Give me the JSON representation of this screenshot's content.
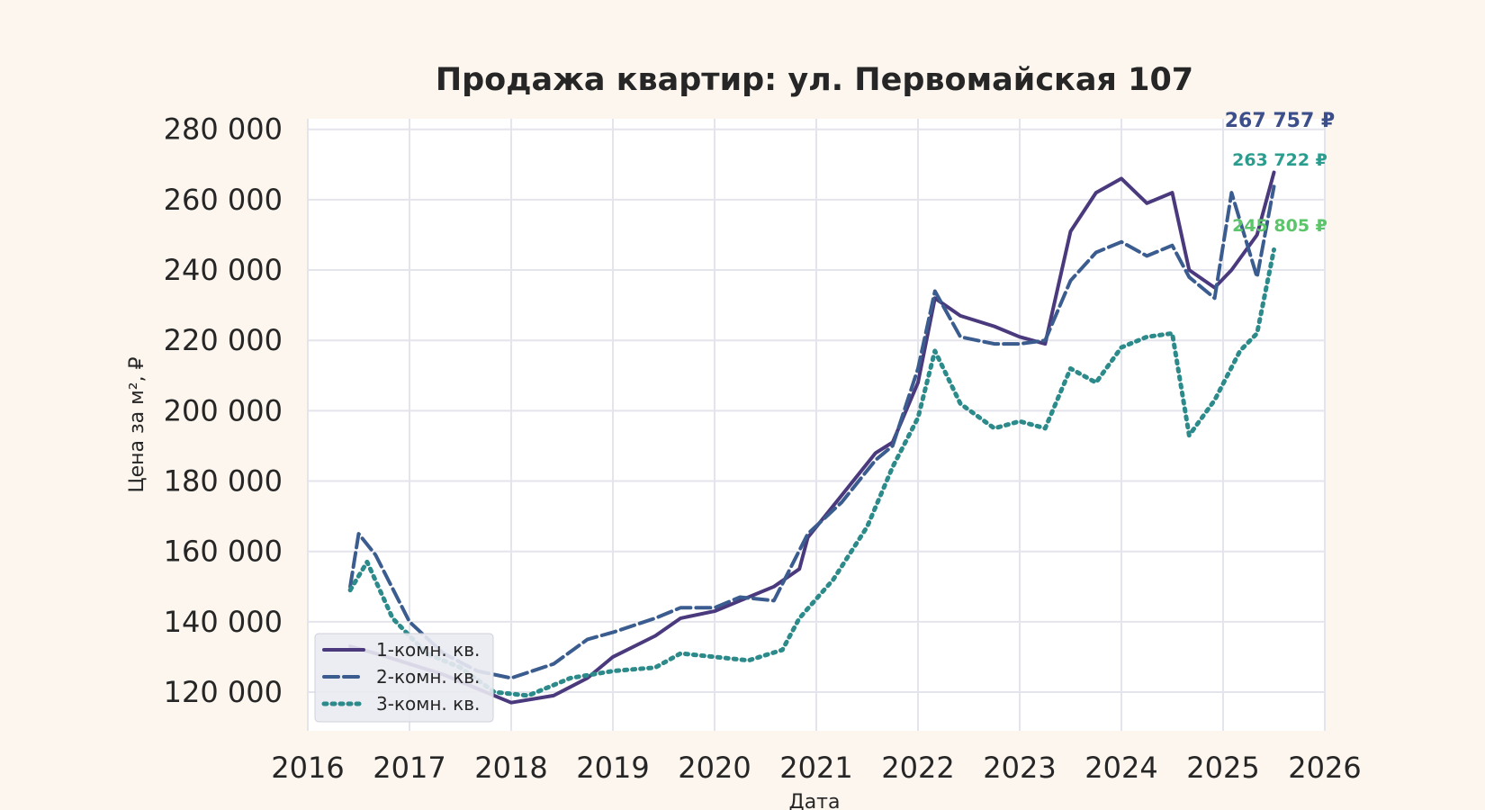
{
  "chart_data": {
    "type": "line",
    "title": "Продажа квартир: ул. Первомайская 107",
    "xlabel": "Дата",
    "ylabel": "Цена за м², ₽",
    "xlim": [
      2016,
      2026
    ],
    "ylim": [
      109000,
      283000
    ],
    "x_ticks": [
      "2016",
      "2017",
      "2018",
      "2019",
      "2020",
      "2021",
      "2022",
      "2023",
      "2024",
      "2025",
      "2026"
    ],
    "y_ticks": [
      120000,
      140000,
      160000,
      180000,
      200000,
      220000,
      240000,
      260000,
      280000
    ],
    "y_tick_labels": [
      "120 000",
      "140 000",
      "160 000",
      "180 000",
      "200 000",
      "220 000",
      "240 000",
      "260 000",
      "280 000"
    ],
    "grid": true,
    "legend_position": "lower-left",
    "series": [
      {
        "name": "1-комн. кв.",
        "color": "#4a3a7d",
        "style": "solid",
        "end_label": "267 757 ₽",
        "x": [
          "2016-06",
          "2016-09",
          "2017-01",
          "2017-05",
          "2017-09",
          "2018-01",
          "2018-06",
          "2018-10",
          "2019-01",
          "2019-06",
          "2019-09",
          "2020-01",
          "2020-04",
          "2020-08",
          "2020-11",
          "2020-12",
          "2021-04",
          "2021-08",
          "2021-10",
          "2022-01",
          "2022-03",
          "2022-06",
          "2022-10",
          "2023-01",
          "2023-04",
          "2023-07",
          "2023-10",
          "2024-01",
          "2024-04",
          "2024-07",
          "2024-09",
          "2024-12",
          "2025-02",
          "2025-05",
          "2025-07"
        ],
        "values": [
          133000,
          131000,
          128000,
          125000,
          121000,
          117000,
          119000,
          124000,
          130000,
          136000,
          141000,
          143000,
          146000,
          150000,
          155000,
          164000,
          176000,
          188000,
          191000,
          208000,
          232000,
          227000,
          224000,
          221000,
          219000,
          251000,
          262000,
          266000,
          259000,
          262000,
          240000,
          235000,
          240000,
          250000,
          267757
        ]
      },
      {
        "name": "2-комн. кв.",
        "color": "#3b5c8f",
        "style": "dashed",
        "end_label": "263 722 ₽",
        "x": [
          "2016-06",
          "2016-07",
          "2016-09",
          "2017-01",
          "2017-05",
          "2017-09",
          "2018-01",
          "2018-06",
          "2018-10",
          "2019-01",
          "2019-06",
          "2019-09",
          "2020-01",
          "2020-04",
          "2020-08",
          "2020-12",
          "2021-04",
          "2021-08",
          "2021-10",
          "2022-01",
          "2022-03",
          "2022-06",
          "2022-10",
          "2023-01",
          "2023-04",
          "2023-07",
          "2023-10",
          "2024-01",
          "2024-04",
          "2024-07",
          "2024-09",
          "2024-12",
          "2025-02",
          "2025-05",
          "2025-07"
        ],
        "values": [
          150000,
          165000,
          159000,
          140000,
          131000,
          126000,
          124000,
          128000,
          135000,
          137000,
          141000,
          144000,
          144000,
          147000,
          146000,
          165000,
          174000,
          186000,
          190000,
          212000,
          234000,
          221000,
          219000,
          219000,
          220000,
          237000,
          245000,
          248000,
          244000,
          247000,
          238000,
          232000,
          262000,
          238000,
          263722
        ]
      },
      {
        "name": "3-комн. кв.",
        "color": "#2c8a8a",
        "style": "dotted",
        "end_label": "245 805 ₽",
        "x": [
          "2016-06",
          "2016-08",
          "2016-11",
          "2017-03",
          "2017-07",
          "2017-11",
          "2018-03",
          "2018-08",
          "2019-01",
          "2019-06",
          "2019-09",
          "2020-01",
          "2020-05",
          "2020-09",
          "2020-11",
          "2021-03",
          "2021-07",
          "2021-10",
          "2022-01",
          "2022-03",
          "2022-06",
          "2022-10",
          "2023-01",
          "2023-04",
          "2023-07",
          "2023-10",
          "2024-01",
          "2024-04",
          "2024-07",
          "2024-09",
          "2024-12",
          "2025-03",
          "2025-05",
          "2025-07"
        ],
        "values": [
          149000,
          157000,
          141000,
          131000,
          127000,
          120000,
          119000,
          124000,
          126000,
          127000,
          131000,
          130000,
          129000,
          132000,
          141000,
          152000,
          167000,
          184000,
          198000,
          217000,
          202000,
          195000,
          197000,
          195000,
          212000,
          208000,
          218000,
          221000,
          222000,
          193000,
          203000,
          217000,
          222000,
          245805
        ]
      }
    ]
  }
}
